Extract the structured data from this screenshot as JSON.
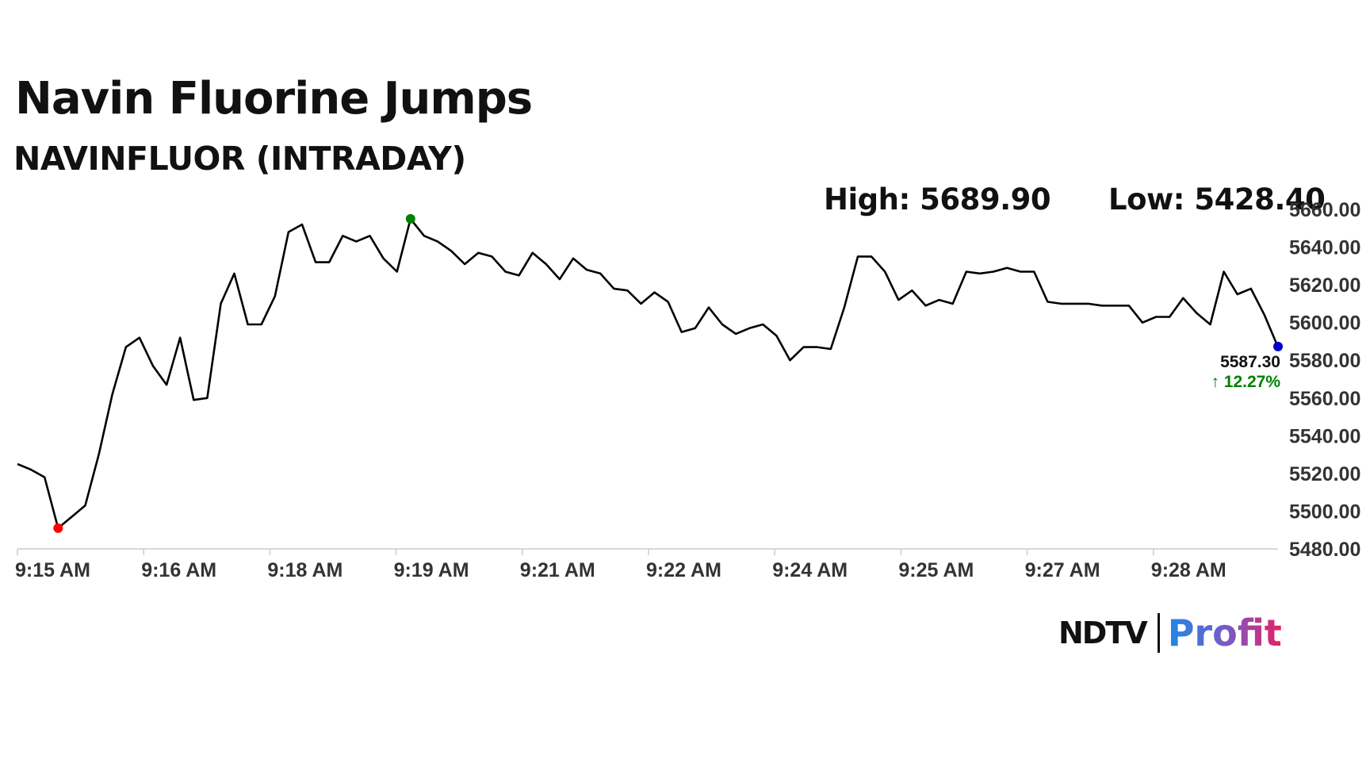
{
  "title": "Navin Fluorine Jumps",
  "subtitle": "NAVINFLUOR (INTRADAY)",
  "high_label": "High: 5689.90",
  "low_label": "Low: 5428.40",
  "last_price": "5587.30",
  "change": "12.27%",
  "change_arrow": "↑",
  "logo": {
    "ndtv": "NDTV",
    "profit": "Profit",
    "ndtv_dot_color": "#e53935"
  },
  "colors": {
    "line": "#000000",
    "high_marker": "#008000",
    "low_marker": "#ff0000",
    "last_marker": "#0000cc",
    "change": "#008000",
    "grid": "#cccccc"
  },
  "chart_data": {
    "type": "line",
    "title": "",
    "xlabel": "",
    "ylabel": "",
    "ylim": [
      5480,
      5660
    ],
    "yticks": [
      "5480.00",
      "5500.00",
      "5520.00",
      "5540.00",
      "5560.00",
      "5580.00",
      "5600.00",
      "5620.00",
      "5640.00",
      "5660.00"
    ],
    "xticks": [
      "9:15 AM",
      "9:16 AM",
      "9:18 AM",
      "9:19 AM",
      "9:21 AM",
      "9:22 AM",
      "9:24 AM",
      "9:25 AM",
      "9:27 AM",
      "9:28 AM"
    ],
    "grid": false,
    "series": [
      {
        "values": [
          5525,
          5522,
          5518,
          5491,
          5497,
          5503,
          5530,
          5562,
          5587,
          5592,
          5577,
          5567,
          5592,
          5559,
          5560,
          5610,
          5626,
          5599,
          5599,
          5614,
          5648,
          5652,
          5632,
          5632,
          5646,
          5643,
          5646,
          5634,
          5627,
          5655,
          5646,
          5643,
          5638,
          5631,
          5637,
          5635,
          5627,
          5625,
          5637,
          5631,
          5623,
          5634,
          5628,
          5626,
          5618,
          5617,
          5610,
          5616,
          5611,
          5595,
          5597,
          5608,
          5599,
          5594,
          5597,
          5599,
          5593,
          5580,
          5587,
          5587,
          5586,
          5608,
          5635,
          5635,
          5627,
          5612,
          5617,
          5609,
          5612,
          5610,
          5627,
          5626,
          5627,
          5629,
          5627,
          5627,
          5611,
          5610,
          5610,
          5610,
          5609,
          5609,
          5609,
          5600,
          5603,
          5603,
          5613,
          5605,
          5599,
          5627,
          5615,
          5618,
          5604,
          5587
        ]
      }
    ],
    "markers": {
      "low_value": 5491,
      "high_value": 5655,
      "last_value": 5587.3
    }
  }
}
